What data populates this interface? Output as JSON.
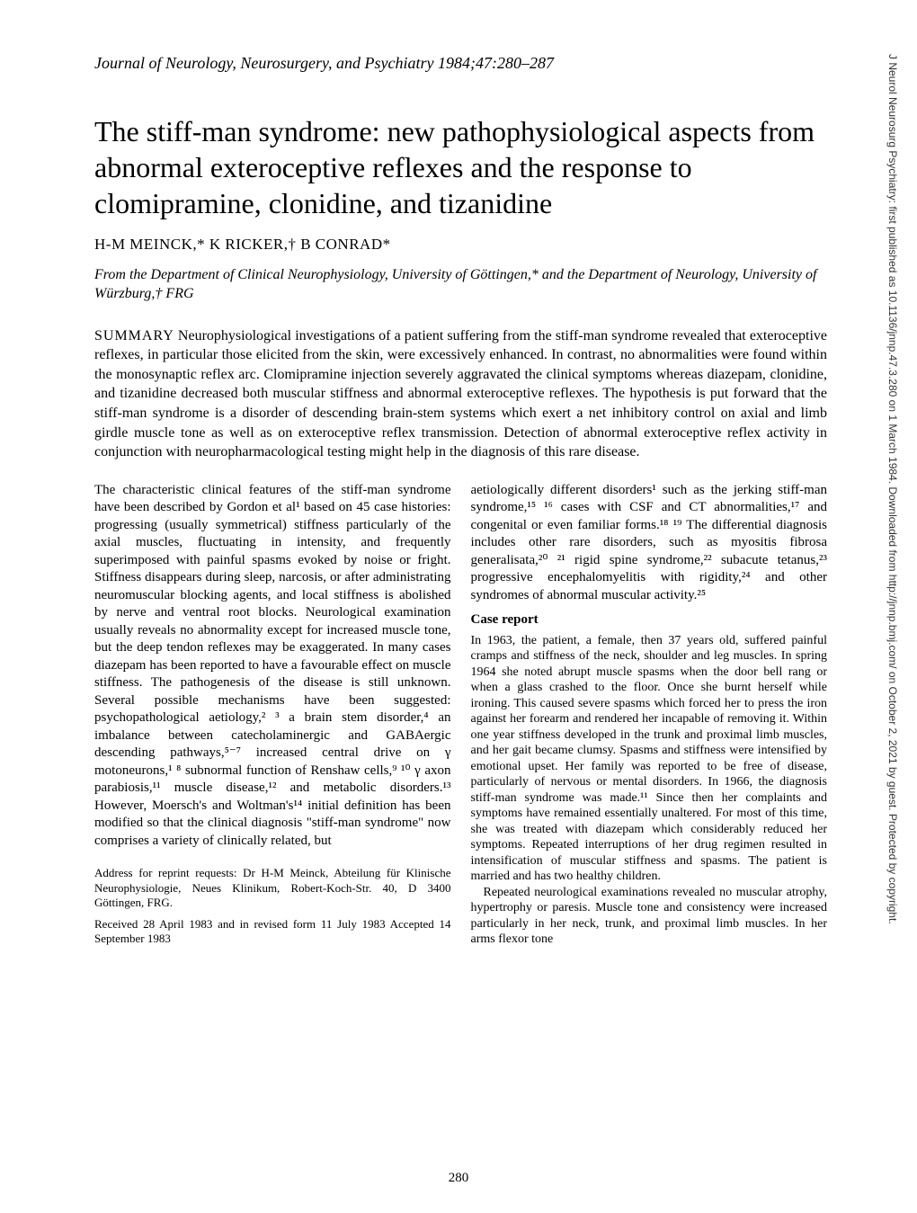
{
  "journal_header": "Journal of Neurology, Neurosurgery, and Psychiatry 1984;47:280–287",
  "article_title": "The stiff-man syndrome: new pathophysiological aspects from abnormal exteroceptive reflexes and the response to clomipramine, clonidine, and tizanidine",
  "authors": "H-M MEINCK,* K RICKER,† B CONRAD*",
  "affiliation": "From the Department of Clinical Neurophysiology, University of Göttingen,* and the Department of Neurology, University of Würzburg,† FRG",
  "summary_label": "SUMMARY",
  "summary_text": "Neurophysiological investigations of a patient suffering from the stiff-man syndrome revealed that exteroceptive reflexes, in particular those elicited from the skin, were excessively enhanced. In contrast, no abnormalities were found within the monosynaptic reflex arc. Clomipramine injection severely aggravated the clinical symptoms whereas diazepam, clonidine, and tizanidine decreased both muscular stiffness and abnormal exteroceptive reflexes. The hypothesis is put forward that the stiff-man syndrome is a disorder of descending brain-stem systems which exert a net inhibitory control on axial and limb girdle muscle tone as well as on exteroceptive reflex transmission. Detection of abnormal exteroceptive reflex activity in conjunction with neuropharmacological testing might help in the diagnosis of this rare disease.",
  "left_col_p1": "The characteristic clinical features of the stiff-man syndrome have been described by Gordon et al¹ based on 45 case histories: progressing (usually symmetrical) stiffness particularly of the axial muscles, fluctuating in intensity, and frequently superimposed with painful spasms evoked by noise or fright. Stiffness disappears during sleep, narcosis, or after administrating neuromuscular blocking agents, and local stiffness is abolished by nerve and ventral root blocks. Neurological examination usually reveals no abnormality except for increased muscle tone, but the deep tendon reflexes may be exaggerated. In many cases diazepam has been reported to have a favourable effect on muscle stiffness. The pathogenesis of the disease is still unknown. Several possible mechanisms have been suggested: psychopathological aetiology,² ³ a brain stem disorder,⁴ an imbalance between catecholaminergic and GABAergic descending pathways,⁵⁻⁷ increased central drive on γ motoneurons,¹ ⁸ subnormal function of Renshaw cells,⁹ ¹⁰ γ axon parabiosis,¹¹ muscle disease,¹² and metabolic disorders.¹³ However, Moersch's and Woltman's¹⁴ initial definition has been modified so that the clinical diagnosis \"stiff-man syndrome\" now comprises a variety of clinically related, but",
  "right_col_p1": "aetiologically different disorders¹ such as the jerking stiff-man syndrome,¹⁵ ¹⁶ cases with CSF and CT abnormalities,¹⁷ and congenital or even familiar forms.¹⁸ ¹⁹ The differential diagnosis includes other rare disorders, such as myositis fibrosa generalisata,²⁰ ²¹ rigid spine syndrome,²² subacute tetanus,²³ progressive encephalomyelitis with rigidity,²⁴ and other syndromes of abnormal muscular activity.²⁵",
  "case_report_heading": "Case report",
  "case_report_p1": "In 1963, the patient, a female, then 37 years old, suffered painful cramps and stiffness of the neck, shoulder and leg muscles. In spring 1964 she noted abrupt muscle spasms when the door bell rang or when a glass crashed to the floor. Once she burnt herself while ironing. This caused severe spasms which forced her to press the iron against her forearm and rendered her incapable of removing it. Within one year stiffness developed in the trunk and proximal limb muscles, and her gait became clumsy. Spasms and stiffness were intensified by emotional upset. Her family was reported to be free of disease, particularly of nervous or mental disorders. In 1966, the diagnosis stiff-man syndrome was made.¹¹ Since then her complaints and symptoms have remained essentially unaltered. For most of this time, she was treated with diazepam which considerably reduced her symptoms. Repeated interruptions of her drug regimen resulted in intensification of muscular stiffness and spasms. The patient is married and has two healthy children.",
  "case_report_p2": "Repeated neurological examinations revealed no muscular atrophy, hypertrophy or paresis. Muscle tone and consistency were increased particularly in her neck, trunk, and proximal limb muscles. In her arms flexor tone",
  "footer_address": "Address for reprint requests: Dr H-M Meinck, Abteilung für Klinische Neurophysiologie, Neues Klinikum, Robert-Koch-Str. 40, D 3400 Göttingen, FRG.",
  "footer_dates": "Received 28 April 1983 and in revised form 11 July 1983\nAccepted 14 September 1983",
  "page_number": "280",
  "sidebar_text": "J Neurol Neurosurg Psychiatry: first published as 10.1136/jnnp.47.3.280 on 1 March 1984. Downloaded from http://jnnp.bmj.com/ on October 2, 2021 by guest. Protected by copyright."
}
